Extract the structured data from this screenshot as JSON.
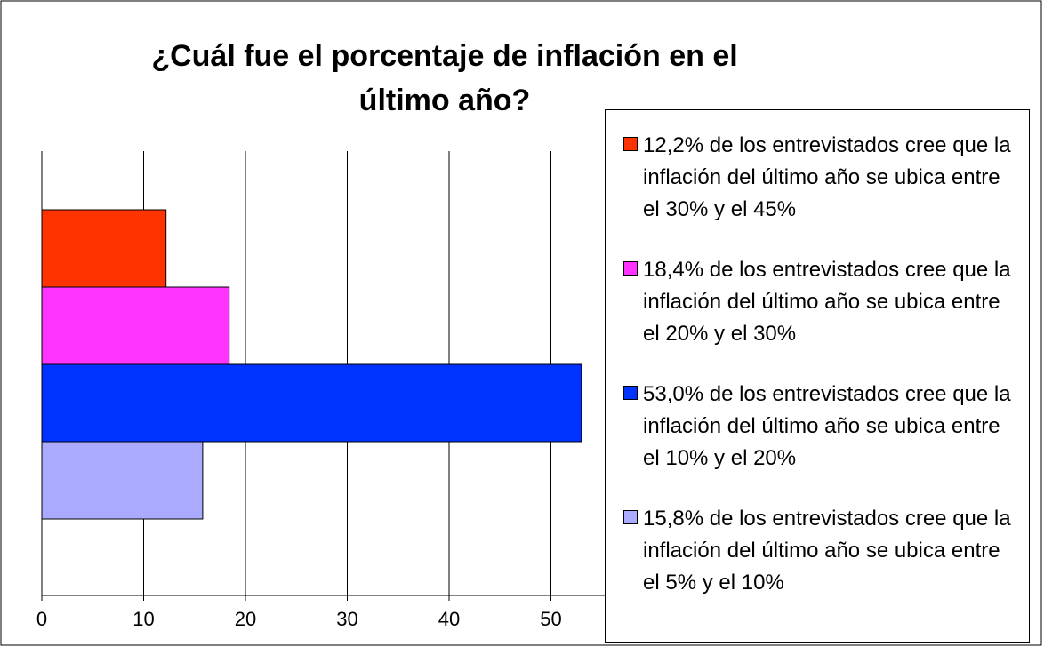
{
  "chart_data": {
    "type": "barh",
    "title": "¿Cuál fue el porcentaje de inflación en el último año?",
    "series": [
      {
        "name": "12,2% de los entrevistados cree que la inflación del último año se ubica entre el 30% y el 45%",
        "color": "#ff3300",
        "values": [
          12.2
        ]
      },
      {
        "name": "18,4% de los entrevistados cree que la inflación del último año se ubica entre el 20% y el 30%",
        "color": "#ff33ff",
        "values": [
          18.4
        ]
      },
      {
        "name": "53,0% de los entrevistados cree que la inflación del último año se ubica entre el 10% y el 20%",
        "color": "#0033ff",
        "values": [
          53.0
        ]
      },
      {
        "name": "15,8% de los entrevistados cree que la inflación del último año se ubica entre el 5% y el 10%",
        "color": "#aaaaff",
        "values": [
          15.8
        ]
      }
    ],
    "xlim": [
      0,
      60
    ],
    "xticks": [
      0,
      10,
      20,
      30,
      40,
      50
    ],
    "grid": true
  }
}
